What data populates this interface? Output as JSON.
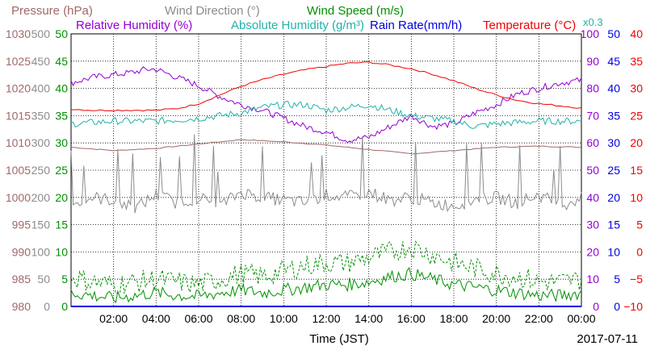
{
  "colors": {
    "pressure": "#a06868",
    "wind_direction": "#8c8c8c",
    "wind_speed": "#009000",
    "humidity": "#9400d3",
    "abs_humidity": "#20b2aa",
    "rain": "#0000e0",
    "temperature": "#f00000",
    "grid": "#000000",
    "time_axis": "#0000ff"
  },
  "chart_data": {
    "type": "line",
    "legend_row1": [
      {
        "key": "pressure",
        "text": "Pressure (hPa)"
      },
      {
        "key": "wind_direction",
        "text": "Wind Direction (°)"
      },
      {
        "key": "wind_speed",
        "text": "Wind Speed (m/s)"
      }
    ],
    "legend_row2": [
      {
        "key": "humidity",
        "text": "Relative Humidity (%)"
      },
      {
        "key": "abs_humidity",
        "text": "Absolute Humidity (g/m³)"
      },
      {
        "key": "rain",
        "text": "Rain Rate(mm/h)"
      },
      {
        "key": "temperature",
        "text": "Temperature (°C)"
      }
    ],
    "abs_humidity_scale_note": "x0.3",
    "xlabel": "Time (JST)",
    "date": "2017-07-11",
    "x_ticks": [
      "02:00",
      "04:00",
      "06:00",
      "08:00",
      "10:00",
      "12:00",
      "14:00",
      "16:00",
      "18:00",
      "20:00",
      "22:00",
      "00:00"
    ],
    "axes": {
      "pressure": {
        "ticks": [
          980,
          985,
          990,
          995,
          1000,
          1005,
          1010,
          1015,
          1020,
          1025,
          1030
        ]
      },
      "wind_direction": {
        "ticks": [
          0,
          50,
          100,
          150,
          200,
          250,
          300,
          350,
          400,
          450,
          500
        ]
      },
      "wind_speed": {
        "ticks": [
          0,
          5,
          10,
          15,
          20,
          25,
          30,
          35,
          40,
          45,
          50
        ]
      },
      "humidity": {
        "ticks": [
          0,
          10,
          20,
          30,
          40,
          50,
          60,
          70,
          80,
          90,
          100
        ]
      },
      "rain": {
        "ticks": [
          0,
          5,
          10,
          15,
          20,
          25,
          30,
          35,
          40,
          45,
          50
        ]
      },
      "temperature": {
        "ticks": [
          "−10",
          "−5",
          "0",
          "5",
          "10",
          "15",
          "20",
          "25",
          "30",
          "35",
          "40"
        ]
      }
    },
    "x_range_hours": [
      0,
      24
    ],
    "grid": true,
    "series": [
      {
        "key": "pressure",
        "axis": "pressure",
        "x": [
          0,
          2,
          4,
          6,
          8,
          10,
          12,
          14,
          16,
          18,
          20,
          22,
          24
        ],
        "values": [
          1009.2,
          1008.6,
          1009.0,
          1009.8,
          1010.6,
          1010.2,
          1009.6,
          1008.8,
          1008.0,
          1008.6,
          1009.2,
          1009.4,
          1009.2
        ]
      },
      {
        "key": "temperature",
        "axis": "temperature",
        "x": [
          0,
          1,
          2,
          3,
          4,
          5,
          6,
          7,
          8,
          9,
          10,
          11,
          12,
          13,
          14,
          15,
          16,
          17,
          18,
          19,
          20,
          21,
          22,
          23,
          24
        ],
        "values": [
          26.2,
          26.0,
          26.0,
          26.0,
          26.0,
          26.3,
          27.2,
          28.8,
          30.4,
          31.6,
          32.6,
          33.4,
          34.0,
          34.6,
          34.8,
          34.3,
          33.6,
          32.6,
          31.4,
          30.0,
          28.8,
          27.8,
          27.2,
          26.8,
          26.4
        ]
      },
      {
        "key": "humidity",
        "axis": "humidity",
        "x": [
          0,
          1,
          2,
          3,
          3.5,
          4,
          5,
          6,
          7,
          8,
          9,
          10,
          11,
          12,
          13,
          14,
          15,
          16,
          17,
          18,
          19,
          20,
          21,
          22,
          23,
          24
        ],
        "values": [
          82,
          84,
          85,
          86,
          87,
          87,
          84,
          81,
          77,
          74,
          72,
          69,
          66,
          64,
          61,
          62,
          66,
          70,
          66,
          67,
          71,
          74,
          78,
          80,
          82,
          83
        ]
      },
      {
        "key": "abs_humidity",
        "axis": "humidity",
        "x": [
          0,
          2,
          4,
          6,
          8,
          9,
          10,
          11,
          12,
          13,
          14,
          15,
          16,
          17,
          18,
          19,
          20,
          22,
          24
        ],
        "values": [
          67,
          68,
          68,
          69,
          71,
          73,
          74,
          74,
          72,
          73,
          74,
          72,
          70,
          69,
          68,
          66,
          67,
          68,
          68
        ]
      },
      {
        "key": "wind_direction",
        "axis": "wind_direction",
        "x": [
          0,
          1,
          2,
          3,
          4,
          5,
          6,
          7,
          8,
          9,
          10,
          11,
          12,
          13,
          14,
          15,
          16,
          17,
          18,
          19,
          20,
          21,
          22,
          23,
          24
        ],
        "values": [
          185,
          200,
          195,
          180,
          205,
          190,
          200,
          185,
          210,
          200,
          195,
          190,
          205,
          200,
          210,
          195,
          200,
          190,
          185,
          195,
          200,
          190,
          205,
          185,
          200
        ]
      },
      {
        "key": "wind_speed_avg",
        "axis": "wind_speed",
        "x": [
          0,
          1,
          2,
          3,
          4,
          5,
          6,
          7,
          8,
          9,
          10,
          11,
          12,
          13,
          14,
          15,
          16,
          17,
          18,
          19,
          20,
          21,
          22,
          23,
          24
        ],
        "values": [
          2.5,
          2.0,
          1.5,
          2.0,
          2.5,
          2.0,
          1.8,
          2.5,
          3.0,
          2.5,
          3.0,
          3.5,
          4.0,
          4.0,
          4.5,
          5.5,
          6.0,
          5.0,
          4.0,
          3.5,
          3.0,
          2.5,
          2.0,
          2.0,
          2.5
        ]
      },
      {
        "key": "wind_speed_gust",
        "axis": "wind_speed",
        "x": [
          0,
          1,
          2,
          3,
          4,
          5,
          6,
          7,
          8,
          9,
          10,
          11,
          12,
          13,
          14,
          15,
          16,
          17,
          18,
          19,
          20,
          21,
          22,
          23,
          24
        ],
        "values": [
          5.5,
          4.5,
          4.0,
          4.5,
          5.0,
          4.5,
          4.0,
          5.0,
          6.0,
          5.5,
          6.5,
          7.5,
          8.0,
          8.0,
          9.0,
          10.0,
          11.0,
          9.5,
          8.0,
          7.0,
          6.0,
          5.5,
          4.5,
          4.5,
          5.0
        ]
      },
      {
        "key": "rain",
        "axis": "rain",
        "x": [
          0,
          24
        ],
        "values": [
          0,
          0
        ]
      }
    ]
  }
}
